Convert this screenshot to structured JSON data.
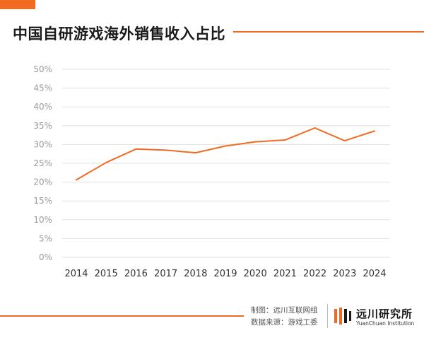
{
  "header": {
    "title": "中国自研游戏海外销售收入占比"
  },
  "footer": {
    "producer": "制图：远川互联网组",
    "source": "数据来源：游戏工委",
    "brand_name": "远川研究所",
    "brand_sub": "YuanChuan Institution"
  },
  "colors": {
    "accent": "#f26a21",
    "grid": "#e0e0e0"
  },
  "chart_data": {
    "type": "line",
    "title": "中国自研游戏海外销售收入占比",
    "categories": [
      "2014",
      "2015",
      "2016",
      "2017",
      "2018",
      "2019",
      "2020",
      "2021",
      "2022",
      "2023",
      "2024"
    ],
    "series": [
      {
        "values": [
          20.6,
          25.2,
          28.8,
          28.5,
          27.8,
          29.6,
          30.7,
          31.2,
          34.4,
          31.0,
          33.6
        ]
      }
    ],
    "y_ticks": [
      "0%",
      "5%",
      "10%",
      "15%",
      "20%",
      "25%",
      "30%",
      "35%",
      "40%",
      "45%",
      "50%"
    ],
    "ylim": [
      0,
      50
    ],
    "grid": true,
    "legend": "none",
    "xlabel": "",
    "ylabel": ""
  }
}
